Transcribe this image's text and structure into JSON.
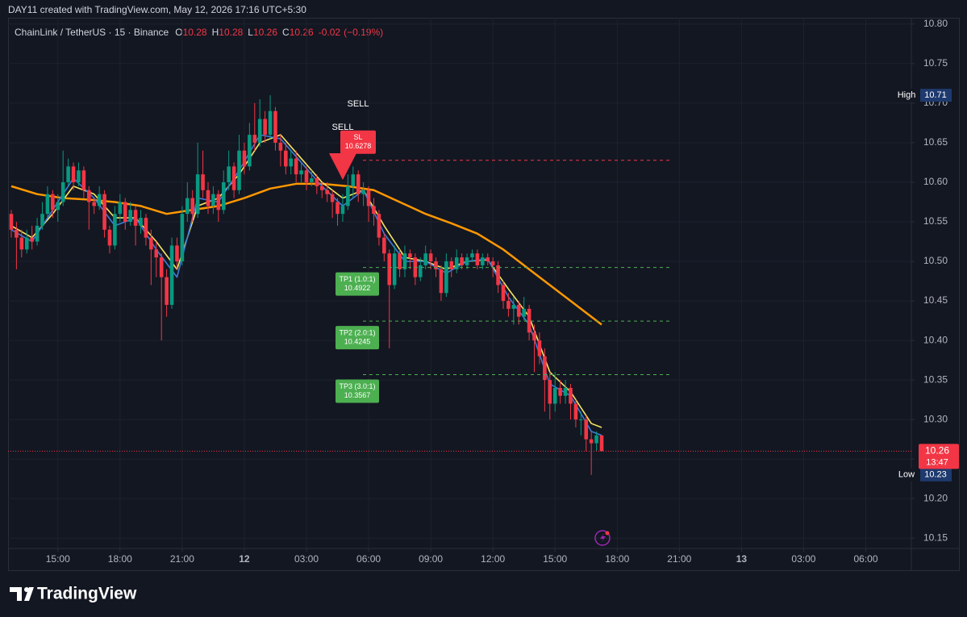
{
  "header": "DAY11 created with TradingView.com, May 12, 2026 17:16 UTC+5:30",
  "footer": "TradingView",
  "chart_data": {
    "type": "candlestick",
    "title": "ChainLink / TetherUS · 15 · Binance",
    "legend": [
      {
        "label": "O",
        "value": 10.28
      },
      {
        "label": "H",
        "value": 10.28
      },
      {
        "label": "L",
        "value": 10.26
      },
      {
        "label": "C",
        "value": 10.26
      }
    ],
    "change": -0.02,
    "change_pct": "(−0.19%)",
    "up_color": "#089981",
    "down_color": "#f23645",
    "open": [
      10.56,
      10.54,
      10.53,
      10.515,
      10.53,
      10.525,
      10.545,
      10.56,
      10.585,
      10.565,
      10.575,
      10.6,
      10.62,
      10.6,
      10.615,
      10.59,
      10.575,
      10.57,
      10.585,
      10.54,
      10.52,
      10.56,
      10.575,
      10.55,
      10.565,
      10.545,
      10.555,
      10.53,
      10.515,
      10.505,
      10.48,
      10.445,
      10.52,
      10.5,
      10.56,
      10.58,
      10.56,
      10.61,
      10.59,
      10.57,
      10.585,
      10.565,
      10.6,
      10.62,
      10.59,
      10.64,
      10.62,
      10.66,
      10.65,
      10.68,
      10.66,
      10.69,
      10.65,
      10.64,
      10.62,
      10.63,
      10.61,
      10.615,
      10.6,
      10.605,
      10.595,
      10.59,
      10.585,
      10.575,
      10.56,
      10.57,
      10.595,
      10.61,
      10.585,
      10.59,
      10.57,
      10.56,
      10.53,
      10.51,
      10.47,
      10.51,
      10.49,
      10.51,
      10.505,
      10.48,
      10.495,
      10.51,
      10.5,
      10.49,
      10.46,
      10.5,
      10.49,
      10.505,
      10.495,
      10.505,
      10.51,
      10.495,
      10.505,
      10.5,
      10.495,
      10.47,
      10.45,
      10.44,
      10.445,
      10.43,
      10.44,
      10.41,
      10.4,
      10.38,
      10.35,
      10.32,
      10.34,
      10.33,
      10.34,
      10.32,
      10.3,
      10.3,
      10.275,
      10.27,
      10.28
    ],
    "high": [
      10.565,
      10.55,
      10.54,
      10.54,
      10.545,
      10.555,
      10.575,
      10.595,
      10.59,
      10.585,
      10.64,
      10.63,
      10.625,
      10.625,
      10.62,
      10.595,
      10.58,
      10.595,
      10.59,
      10.545,
      10.57,
      10.585,
      10.58,
      10.575,
      10.57,
      10.565,
      10.56,
      10.54,
      10.525,
      10.51,
      10.49,
      10.53,
      10.53,
      10.57,
      10.6,
      10.59,
      10.65,
      10.64,
      10.6,
      10.595,
      10.59,
      10.615,
      10.64,
      10.625,
      10.66,
      10.65,
      10.675,
      10.7,
      10.705,
      10.69,
      10.71,
      10.695,
      10.66,
      10.65,
      10.64,
      10.64,
      10.625,
      10.62,
      10.615,
      10.61,
      10.6,
      10.6,
      10.59,
      10.58,
      10.585,
      10.61,
      10.62,
      10.615,
      10.6,
      10.595,
      10.58,
      10.565,
      10.535,
      10.515,
      10.52,
      10.515,
      10.52,
      10.515,
      10.51,
      10.505,
      10.52,
      10.515,
      10.505,
      10.495,
      10.51,
      10.505,
      10.515,
      10.51,
      10.51,
      10.515,
      10.515,
      10.51,
      10.51,
      10.505,
      10.5,
      10.475,
      10.46,
      10.455,
      10.45,
      10.455,
      10.445,
      10.42,
      10.41,
      10.39,
      10.36,
      10.36,
      10.35,
      10.35,
      10.345,
      10.325,
      10.31,
      10.305,
      10.285,
      10.285,
      10.28
    ],
    "low": [
      10.53,
      10.49,
      10.505,
      10.51,
      10.515,
      10.52,
      10.54,
      10.555,
      10.555,
      10.55,
      10.57,
      10.595,
      10.59,
      10.595,
      10.58,
      10.54,
      10.56,
      10.565,
      10.53,
      10.51,
      10.515,
      10.55,
      10.54,
      10.545,
      10.52,
      10.535,
      10.52,
      10.47,
      10.48,
      10.4,
      10.43,
      10.44,
      10.49,
      10.495,
      10.55,
      10.55,
      10.555,
      10.58,
      10.56,
      10.56,
      10.55,
      10.56,
      10.59,
      10.58,
      10.585,
      10.61,
      10.615,
      10.64,
      10.645,
      10.65,
      10.655,
      10.64,
      10.62,
      10.61,
      10.61,
      10.6,
      10.6,
      10.59,
      10.595,
      10.585,
      10.58,
      10.575,
      10.555,
      10.545,
      10.55,
      10.565,
      10.58,
      10.575,
      10.57,
      10.55,
      10.545,
      10.52,
      10.5,
      10.39,
      10.465,
      10.48,
      10.48,
      10.49,
      10.47,
      10.475,
      10.49,
      10.49,
      10.48,
      10.45,
      10.455,
      10.48,
      10.485,
      10.49,
      10.49,
      10.5,
      10.49,
      10.49,
      10.495,
      10.48,
      10.46,
      10.44,
      10.43,
      10.42,
      10.42,
      10.425,
      10.4,
      10.36,
      10.37,
      10.31,
      10.3,
      10.31,
      10.32,
      10.32,
      10.3,
      10.29,
      10.28,
      10.26,
      10.23,
      10.26,
      10.26
    ],
    "close": [
      10.54,
      10.53,
      10.515,
      10.53,
      10.525,
      10.545,
      10.56,
      10.585,
      10.565,
      10.575,
      10.6,
      10.62,
      10.6,
      10.615,
      10.59,
      10.575,
      10.57,
      10.585,
      10.54,
      10.52,
      10.56,
      10.575,
      10.55,
      10.565,
      10.545,
      10.555,
      10.53,
      10.515,
      10.505,
      10.48,
      10.445,
      10.52,
      10.5,
      10.56,
      10.58,
      10.56,
      10.61,
      10.59,
      10.57,
      10.585,
      10.565,
      10.6,
      10.62,
      10.59,
      10.64,
      10.62,
      10.66,
      10.65,
      10.68,
      10.66,
      10.69,
      10.65,
      10.64,
      10.62,
      10.63,
      10.61,
      10.615,
      10.6,
      10.605,
      10.595,
      10.59,
      10.585,
      10.575,
      10.56,
      10.57,
      10.595,
      10.61,
      10.585,
      10.59,
      10.57,
      10.56,
      10.53,
      10.51,
      10.47,
      10.51,
      10.49,
      10.51,
      10.505,
      10.48,
      10.495,
      10.51,
      10.5,
      10.49,
      10.46,
      10.5,
      10.49,
      10.505,
      10.495,
      10.505,
      10.51,
      10.495,
      10.505,
      10.5,
      10.495,
      10.47,
      10.45,
      10.44,
      10.445,
      10.43,
      10.44,
      10.41,
      10.4,
      10.38,
      10.35,
      10.32,
      10.34,
      10.33,
      10.34,
      10.32,
      10.3,
      10.3,
      10.275,
      10.27,
      10.28,
      10.26
    ],
    "lines": [
      {
        "color": "#ff9800",
        "x": [
          0,
          5,
          10,
          15,
          20,
          25,
          30,
          35,
          40,
          45,
          50,
          55,
          60,
          65,
          70,
          75,
          80,
          85,
          90,
          95,
          100,
          105,
          110,
          114
        ],
        "values": [
          10.595,
          10.585,
          10.58,
          10.578,
          10.575,
          10.57,
          10.56,
          10.565,
          10.57,
          10.58,
          10.592,
          10.598,
          10.598,
          10.595,
          10.59,
          10.575,
          10.56,
          10.548,
          10.535,
          10.515,
          10.49,
          10.465,
          10.44,
          10.42
        ]
      },
      {
        "color": "#f5e663",
        "x": [
          0,
          4,
          8,
          12,
          16,
          20,
          24,
          28,
          32,
          36,
          40,
          44,
          48,
          52,
          56,
          60,
          64,
          68,
          72,
          76,
          80,
          84,
          88,
          92,
          96,
          100,
          104,
          108,
          112,
          114
        ],
        "values": [
          10.545,
          10.53,
          10.56,
          10.595,
          10.585,
          10.555,
          10.555,
          10.525,
          10.49,
          10.57,
          10.58,
          10.61,
          10.65,
          10.66,
          10.63,
          10.6,
          10.58,
          10.59,
          10.545,
          10.505,
          10.5,
          10.49,
          10.5,
          10.502,
          10.465,
          10.43,
          10.36,
          10.335,
          10.295,
          10.29
        ]
      },
      {
        "color": "#3d7bd9",
        "x": [
          0,
          4,
          8,
          12,
          16,
          20,
          24,
          28,
          32,
          36,
          40,
          44,
          48,
          52,
          56,
          60,
          64,
          68,
          72,
          76,
          80,
          84,
          88,
          92,
          96,
          100,
          104,
          108,
          112,
          114
        ],
        "values": [
          10.54,
          10.525,
          10.565,
          10.605,
          10.58,
          10.545,
          10.555,
          10.515,
          10.48,
          10.58,
          10.575,
          10.615,
          10.66,
          10.655,
          10.625,
          10.595,
          10.57,
          10.59,
          10.535,
          10.5,
          10.5,
          10.485,
          10.5,
          10.503,
          10.455,
          10.42,
          10.345,
          10.33,
          10.285,
          10.28
        ]
      }
    ],
    "signals": [
      "SELL",
      "SELL"
    ],
    "levels": [
      {
        "label": "SL",
        "value": 10.6278,
        "color": "#f23645"
      },
      {
        "label": "TP1 (1.0:1)",
        "value": 10.4922,
        "color": "#4caf50"
      },
      {
        "label": "TP2 (2.0:1)",
        "value": 10.4245,
        "color": "#4caf50"
      },
      {
        "label": "TP3 (3.0:1)",
        "value": 10.3567,
        "color": "#4caf50"
      }
    ],
    "extremes": [
      {
        "label": "High",
        "value": 10.71
      },
      {
        "label": "Low",
        "value": 10.23
      }
    ],
    "last_price": {
      "value": 10.26,
      "countdown": "13:47"
    },
    "xlim": [
      -0.62,
      173.8
    ],
    "xticks": [
      {
        "value": 9,
        "label": "15:00"
      },
      {
        "value": 21,
        "label": "18:00"
      },
      {
        "value": 33,
        "label": "21:00"
      },
      {
        "value": 45,
        "label": "12"
      },
      {
        "value": 57,
        "label": "03:00"
      },
      {
        "value": 69,
        "label": "06:00"
      },
      {
        "value": 81,
        "label": "09:00"
      },
      {
        "value": 93,
        "label": "12:00"
      },
      {
        "value": 105,
        "label": "15:00"
      },
      {
        "value": 117,
        "label": "18:00"
      },
      {
        "value": 129,
        "label": "21:00"
      },
      {
        "value": 141,
        "label": "13"
      },
      {
        "value": 153,
        "label": "03:00"
      },
      {
        "value": 165,
        "label": "06:00"
      }
    ],
    "ylim": [
      10.137,
      10.808
    ],
    "yticks": [
      10.15,
      {
        "value": 10.2,
        "label": "10.20"
      },
      10.25,
      {
        "value": 10.3,
        "label": "10.30"
      },
      10.35,
      {
        "value": 10.4,
        "label": "10.40"
      },
      10.45,
      {
        "value": 10.5,
        "label": "10.50"
      },
      10.55,
      {
        "value": 10.6,
        "label": "10.60"
      },
      10.65,
      {
        "value": 10.7,
        "label": "10.70"
      },
      10.75,
      {
        "value": 10.8,
        "label": "10.80"
      }
    ],
    "grid": true
  }
}
